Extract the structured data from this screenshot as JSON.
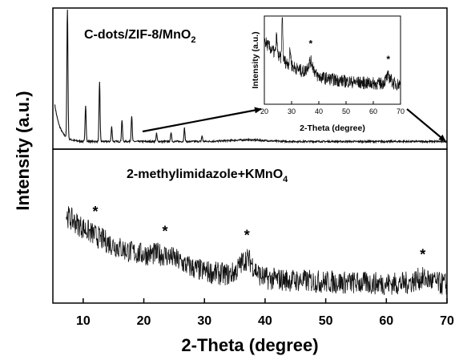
{
  "chart_data": {
    "type": "line",
    "xlabel": "2-Theta (degree)",
    "ylabel": "Intensity (a.u.)",
    "xlim": [
      5,
      70
    ],
    "x_ticks": [
      10,
      20,
      30,
      40,
      50,
      60,
      70
    ],
    "panels": [
      {
        "label": "C-dots/ZIF-8/MnO",
        "label_sub": "2",
        "peaks": [
          {
            "x": 7.4,
            "y": 1.0
          },
          {
            "x": 10.4,
            "y": 0.27
          },
          {
            "x": 12.7,
            "y": 0.44
          },
          {
            "x": 14.7,
            "y": 0.11
          },
          {
            "x": 16.4,
            "y": 0.16
          },
          {
            "x": 18.0,
            "y": 0.19
          },
          {
            "x": 22.1,
            "y": 0.06
          },
          {
            "x": 24.5,
            "y": 0.07
          },
          {
            "x": 26.7,
            "y": 0.1
          },
          {
            "x": 29.6,
            "y": 0.04
          }
        ]
      },
      {
        "label": "2-methylimidazole+KMnO",
        "label_sub": "4",
        "markers": [
          {
            "x": 12.0,
            "text": "*"
          },
          {
            "x": 23.5,
            "text": "*"
          },
          {
            "x": 37.0,
            "text": "*"
          },
          {
            "x": 66.0,
            "text": "*"
          }
        ]
      }
    ],
    "inset": {
      "xlabel": "2-Theta (degree)",
      "ylabel": "Intensity (a.u.)",
      "xlim": [
        20,
        70
      ],
      "x_ticks": [
        20,
        30,
        40,
        50,
        60,
        70
      ],
      "markers": [
        {
          "x": 37.0,
          "text": "*"
        },
        {
          "x": 65.5,
          "text": "*"
        }
      ]
    },
    "grid": false,
    "legend": "none"
  }
}
